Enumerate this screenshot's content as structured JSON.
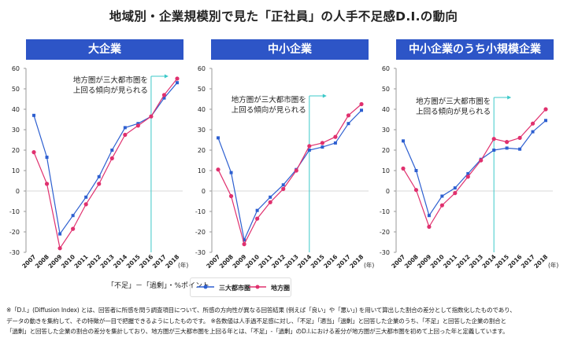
{
  "title": "地域別・企業規模別で見た「正社員」の人手不足感D.I.の動向",
  "chart_data": [
    {
      "type": "line",
      "title": "大企業",
      "categories": [
        "2007",
        "2008",
        "2009",
        "2010",
        "2011",
        "2012",
        "2013",
        "2014",
        "2015",
        "2016",
        "2017",
        "2018"
      ],
      "x_unit": "(年)",
      "ylim": [
        -30,
        60
      ],
      "yticks": [
        60,
        50,
        40,
        30,
        20,
        10,
        0,
        -10,
        -20,
        -30
      ],
      "series": [
        {
          "name": "三大都市圏",
          "color": "#2d5fd0",
          "marker": "square",
          "values": [
            37,
            16.5,
            -21,
            -12,
            -3,
            7,
            20,
            31,
            33,
            36.5,
            45.5,
            53
          ]
        },
        {
          "name": "地方圏",
          "color": "#e0306e",
          "marker": "circle",
          "values": [
            19,
            3.5,
            -28,
            -18.5,
            -6.5,
            3.5,
            16,
            27.5,
            32,
            36.5,
            47,
            55
          ]
        }
      ],
      "marker_year": "2016",
      "annotation": [
        "地方圏が三大都市圏を",
        "上回る傾向が見られる"
      ]
    },
    {
      "type": "line",
      "title": "中小企業",
      "categories": [
        "2007",
        "2008",
        "2009",
        "2010",
        "2011",
        "2012",
        "2013",
        "2014",
        "2015",
        "2016",
        "2017",
        "2018"
      ],
      "x_unit": "(年)",
      "ylim": [
        -30,
        60
      ],
      "yticks": [
        60,
        50,
        40,
        30,
        20,
        10,
        0,
        -10,
        -20,
        -30
      ],
      "series": [
        {
          "name": "三大都市圏",
          "color": "#2d5fd0",
          "marker": "square",
          "values": [
            26,
            9,
            -24,
            -9.5,
            -3,
            3,
            10.5,
            20,
            21.5,
            23.5,
            33,
            39.5
          ]
        },
        {
          "name": "地方圏",
          "color": "#e0306e",
          "marker": "circle",
          "values": [
            10.5,
            -2.5,
            -26,
            -13.5,
            -5.5,
            1,
            10,
            22,
            23.5,
            26.5,
            37,
            42.5
          ]
        }
      ],
      "marker_year": "2014",
      "annotation": [
        "地方圏が三大都市圏を",
        "上回る傾向が見られる"
      ]
    },
    {
      "type": "line",
      "title": "中小企業のうち小規模企業",
      "categories": [
        "2007",
        "2008",
        "2009",
        "2010",
        "2011",
        "2012",
        "2013",
        "2014",
        "2015",
        "2016",
        "2017",
        "2018"
      ],
      "x_unit": "(年)",
      "ylim": [
        -30,
        60
      ],
      "yticks": [
        60,
        50,
        40,
        30,
        20,
        10,
        0,
        -10,
        -20,
        -30
      ],
      "series": [
        {
          "name": "三大都市圏",
          "color": "#2d5fd0",
          "marker": "square",
          "values": [
            24.5,
            10,
            -12,
            -2.5,
            1.5,
            8.5,
            15.5,
            20,
            21,
            20.5,
            29,
            34.5
          ]
        },
        {
          "name": "地方圏",
          "color": "#e0306e",
          "marker": "circle",
          "values": [
            11,
            0.5,
            -17.5,
            -7,
            -1,
            7,
            15,
            25.5,
            24,
            26,
            33,
            40
          ]
        }
      ],
      "marker_year": "2014",
      "annotation": [
        "地方圏が三大都市圏を",
        "上回る傾向が見られる"
      ]
    }
  ],
  "legend": {
    "unit_label": "「不足」－「過剰」・%ポイント",
    "items": [
      "三大都市圏",
      "地方圏"
    ]
  },
  "footnotes": [
    "※「D.I.」(Diffusion Index) とは、回答者に所感を問う調査項目について、所感の方向性が異なる回答結果 (例えば「良い」や「悪い」) を用いて算出した割合の差分として指数化したものであり、",
    "データの動きを集約して、その特徴が一目で把握できるようにしたものです。 ※各数値は人手過不足感に対し、「不足」「適当」「過剰」と回答した企業のうち、「不足」と回答した企業の割合と",
    "「過剰」と回答した企業の割合の差分を集計しており、地方圏が三大都市圏を上回る年とは、「不足」-「過剰」のD.I.における差分が地方圏が三大都市圏を初めて上回った年と定義しています。"
  ]
}
